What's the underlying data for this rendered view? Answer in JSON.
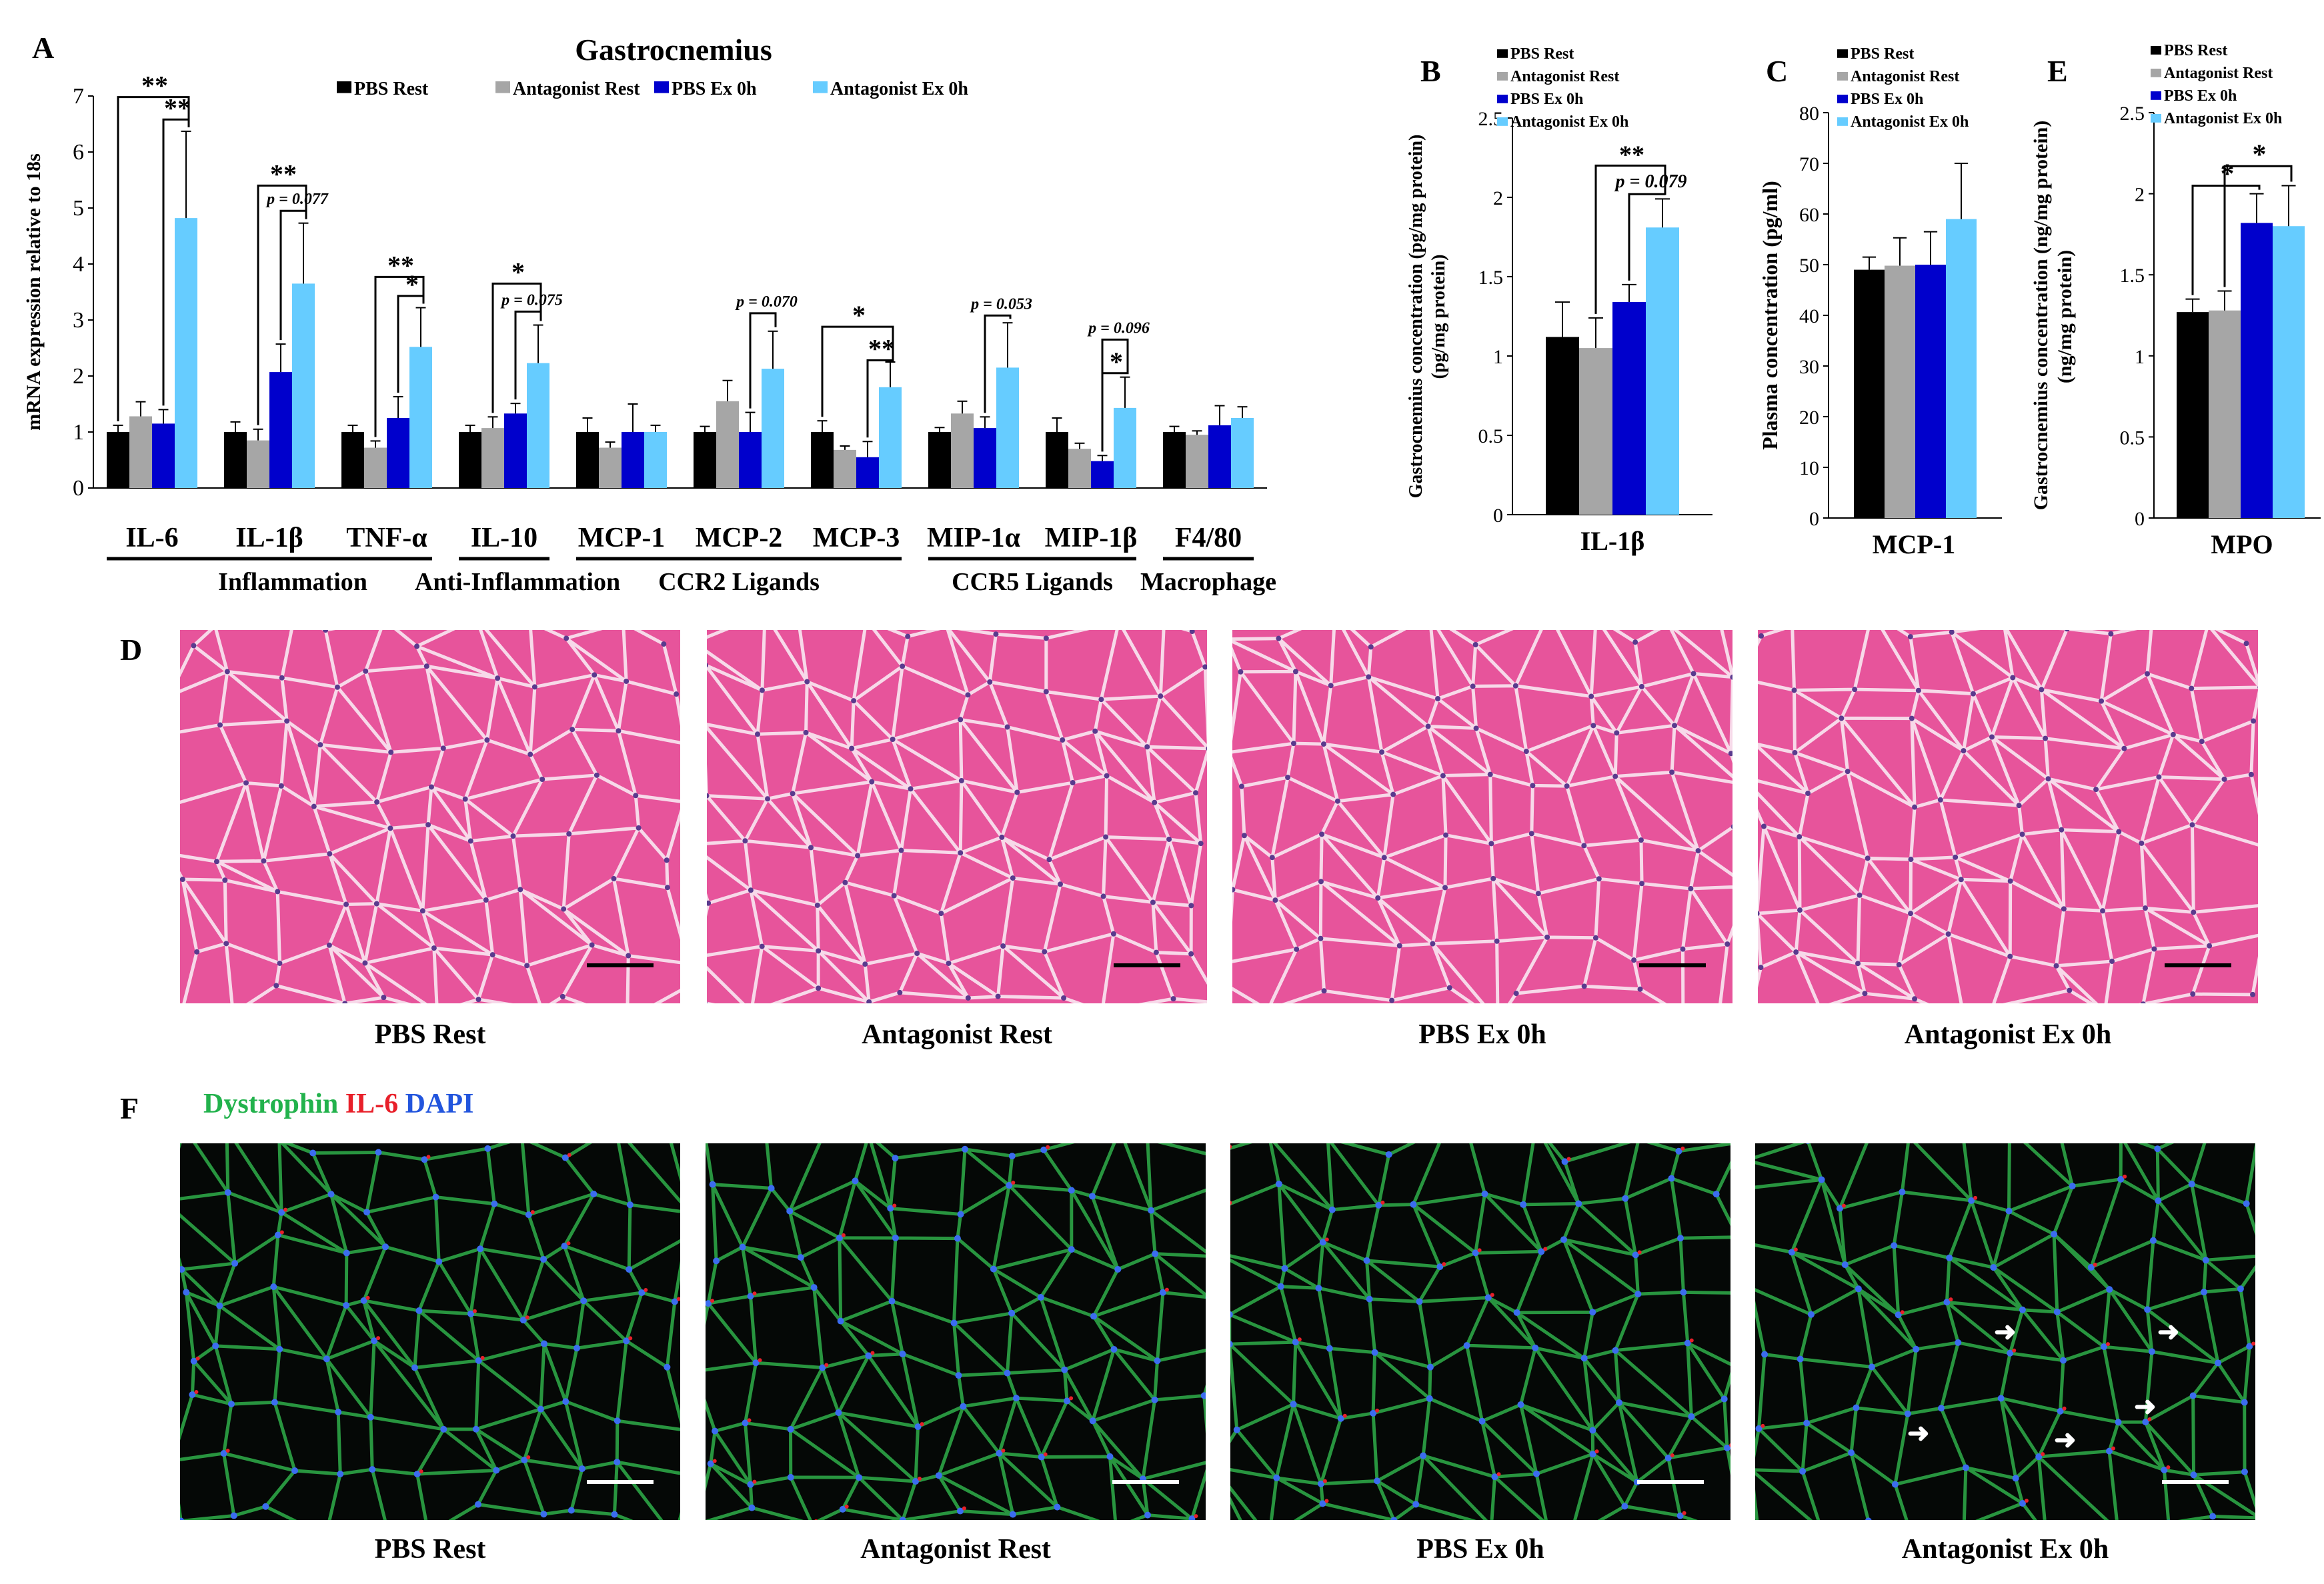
{
  "colors": {
    "pbs_rest": "#000000",
    "antagonist_rest": "#a6a6a6",
    "pbs_ex": "#0000cc",
    "antagonist_ex": "#66ccff",
    "he_stain": "#e7549b",
    "dystrophin": "#22b24c",
    "il6": "#e8202a",
    "dapi": "#2255dd"
  },
  "legend": [
    "PBS Rest",
    "Antagonist Rest",
    "PBS Ex 0h",
    "Antagonist Ex 0h"
  ],
  "panels": {
    "A": "A",
    "B": "B",
    "C": "C",
    "D": "D",
    "E": "E",
    "F": "F"
  },
  "chart_data": [
    {
      "id": "A",
      "type": "bar",
      "title": "Gastrocnemius",
      "ylabel": "mRNA expression relative to 18s",
      "xlabel": "",
      "ylim": [
        0,
        7
      ],
      "yticks": [
        0,
        1,
        2,
        3,
        4,
        5,
        6,
        7
      ],
      "categories": [
        "IL-6",
        "IL-1β",
        "TNF-α",
        "IL-10",
        "MCP-1",
        "MCP-2",
        "MCP-3",
        "MIP-1α",
        "MIP-1β",
        "F4/80"
      ],
      "series": [
        {
          "name": "PBS Rest",
          "values": [
            1.0,
            1.0,
            1.0,
            1.0,
            1.0,
            1.0,
            1.0,
            1.0,
            1.0,
            1.0
          ],
          "errors": [
            0.12,
            0.18,
            0.12,
            0.12,
            0.25,
            0.1,
            0.2,
            0.08,
            0.25,
            0.1
          ]
        },
        {
          "name": "Antagonist Rest",
          "values": [
            1.28,
            0.85,
            0.72,
            1.07,
            0.72,
            1.55,
            0.68,
            1.33,
            0.7,
            0.95
          ],
          "errors": [
            0.26,
            0.2,
            0.12,
            0.2,
            0.1,
            0.37,
            0.07,
            0.22,
            0.1,
            0.07
          ]
        },
        {
          "name": "PBS Ex 0h",
          "values": [
            1.15,
            2.07,
            1.25,
            1.33,
            1.0,
            1.0,
            0.55,
            1.07,
            0.48,
            1.12
          ],
          "errors": [
            0.25,
            0.5,
            0.38,
            0.18,
            0.5,
            0.35,
            0.28,
            0.2,
            0.1,
            0.35
          ]
        },
        {
          "name": "Antagonist Ex 0h",
          "values": [
            4.82,
            3.65,
            2.52,
            2.23,
            1.0,
            2.13,
            1.8,
            2.15,
            1.43,
            1.25
          ],
          "errors": [
            1.55,
            1.08,
            0.7,
            0.68,
            0.12,
            0.67,
            0.45,
            0.8,
            0.55,
            0.2
          ]
        }
      ],
      "annotations": [
        {
          "category": "IL-6",
          "text": "**",
          "from": "PBS Rest",
          "to": "Antagonist Ex 0h",
          "level": 6.98
        },
        {
          "category": "IL-6",
          "text": "**",
          "from": "PBS Ex 0h",
          "to": "Antagonist Ex 0h",
          "level": 6.58
        },
        {
          "category": "IL-1β",
          "text": "**",
          "from": "Antagonist Rest",
          "to": "Antagonist Ex 0h",
          "level": 5.4
        },
        {
          "category": "IL-1β",
          "text": "p = 0.077",
          "from": "PBS Ex 0h",
          "to": "Antagonist Ex 0h",
          "level": 4.95
        },
        {
          "category": "TNF-α",
          "text": "**",
          "from": "Antagonist Rest",
          "to": "Antagonist Ex 0h",
          "level": 3.77
        },
        {
          "category": "TNF-α",
          "text": "*",
          "from": "PBS Ex 0h",
          "to": "Antagonist Ex 0h",
          "level": 3.43
        },
        {
          "category": "IL-10",
          "text": "*",
          "from": "Antagonist Rest",
          "to": "Antagonist Ex 0h",
          "level": 3.65
        },
        {
          "category": "IL-10",
          "text": "p = 0.075",
          "from": "PBS Ex 0h",
          "to": "Antagonist Ex 0h",
          "level": 3.15
        },
        {
          "category": "MCP-2",
          "text": "p = 0.070",
          "from": "PBS Ex 0h",
          "to": "Antagonist Ex 0h",
          "level": 3.12
        },
        {
          "category": "MCP-3",
          "text": "*",
          "from": "PBS Rest",
          "to": "Antagonist Ex 0h",
          "level": 2.88
        },
        {
          "category": "MCP-3",
          "text": "**",
          "from": "PBS Ex 0h",
          "to": "Antagonist Ex 0h",
          "level": 2.28
        },
        {
          "category": "MIP-1α",
          "text": "p = 0.053",
          "from": "PBS Ex 0h",
          "to": "Antagonist Ex 0h",
          "level": 3.08
        },
        {
          "category": "MIP-1β",
          "text": "p = 0.096",
          "from": "PBS Ex 0h",
          "to": "Antagonist Ex 0h",
          "level": 2.65
        },
        {
          "category": "MIP-1β",
          "text": "*",
          "from": "PBS Ex 0h",
          "to": "Antagonist Ex 0h",
          "level": 2.05
        }
      ],
      "groups": [
        {
          "label": "Inflammation",
          "from": "IL-6",
          "to": "TNF-α"
        },
        {
          "label": "Anti-Inflammation",
          "from": "IL-10",
          "to": "IL-10"
        },
        {
          "label": "CCR2 Ligands",
          "from": "MCP-1",
          "to": "MCP-3"
        },
        {
          "label": "CCR5 Ligands",
          "from": "MIP-1α",
          "to": "MIP-1β"
        },
        {
          "label": "Macrophage",
          "from": "F4/80",
          "to": "F4/80"
        }
      ]
    },
    {
      "id": "B",
      "type": "bar",
      "title": "",
      "ylabel": "Gastrocnemius concentration (pg/mg protein)",
      "xlabel": "IL-1β",
      "ylim": [
        0,
        2.5
      ],
      "yticks": [
        0,
        0.5,
        1,
        1.5,
        2,
        2.5
      ],
      "categories": [
        "IL-1β"
      ],
      "series": [
        {
          "name": "PBS Rest",
          "values": [
            1.12
          ],
          "errors": [
            0.22
          ]
        },
        {
          "name": "Antagonist Rest",
          "values": [
            1.05
          ],
          "errors": [
            0.19
          ]
        },
        {
          "name": "PBS Ex 0h",
          "values": [
            1.34
          ],
          "errors": [
            0.11
          ]
        },
        {
          "name": "Antagonist Ex 0h",
          "values": [
            1.81
          ],
          "errors": [
            0.18
          ]
        }
      ],
      "annotations": [
        {
          "text": "**",
          "from": "Antagonist Rest",
          "to": "Antagonist Ex 0h",
          "level": 2.2
        },
        {
          "text": "p = 0.079",
          "from": "PBS Ex 0h",
          "to": "Antagonist Ex 0h",
          "level": 2.02
        }
      ]
    },
    {
      "id": "C",
      "type": "bar",
      "title": "",
      "ylabel": "Plasma concentration (pg/ml)",
      "xlabel": "MCP-1",
      "ylim": [
        0,
        80
      ],
      "yticks": [
        0,
        10,
        20,
        30,
        40,
        50,
        60,
        70,
        80
      ],
      "categories": [
        "MCP-1"
      ],
      "series": [
        {
          "name": "PBS Rest",
          "values": [
            49
          ],
          "errors": [
            2.5
          ]
        },
        {
          "name": "Antagonist Rest",
          "values": [
            49.8
          ],
          "errors": [
            5.5
          ]
        },
        {
          "name": "PBS Ex 0h",
          "values": [
            50
          ],
          "errors": [
            6.5
          ]
        },
        {
          "name": "Antagonist Ex 0h",
          "values": [
            59
          ],
          "errors": [
            11
          ]
        }
      ],
      "annotations": []
    },
    {
      "id": "E",
      "type": "bar",
      "title": "",
      "ylabel": "Gastrocnemius concentration (ng/mg protein)",
      "xlabel": "MPO",
      "ylim": [
        0,
        2.5
      ],
      "yticks": [
        0,
        0.5,
        1,
        1.5,
        2,
        2.5
      ],
      "categories": [
        "MPO"
      ],
      "series": [
        {
          "name": "PBS Rest",
          "values": [
            1.27
          ],
          "errors": [
            0.08
          ]
        },
        {
          "name": "Antagonist Rest",
          "values": [
            1.28
          ],
          "errors": [
            0.12
          ]
        },
        {
          "name": "PBS Ex 0h",
          "values": [
            1.82
          ],
          "errors": [
            0.18
          ]
        },
        {
          "name": "Antagonist Ex 0h",
          "values": [
            1.8
          ],
          "errors": [
            0.25
          ]
        }
      ],
      "annotations": [
        {
          "text": "*",
          "from": "PBS Rest",
          "to": "PBS Ex 0h",
          "level": 2.05
        },
        {
          "text": "*",
          "from": "Antagonist Rest",
          "to": "Antagonist Ex 0h",
          "level": 2.17
        }
      ]
    }
  ],
  "histology": {
    "he_captions": [
      "PBS Rest",
      "Antagonist Rest",
      "PBS Ex 0h",
      "Antagonist Ex 0h"
    ],
    "if_captions": [
      "PBS Rest",
      "Antagonist Rest",
      "PBS Ex 0h",
      "Antagonist Ex 0h"
    ],
    "stain_legend": {
      "dystrophin": "Dystrophin",
      "il6": "IL-6",
      "dapi": "DAPI"
    }
  }
}
